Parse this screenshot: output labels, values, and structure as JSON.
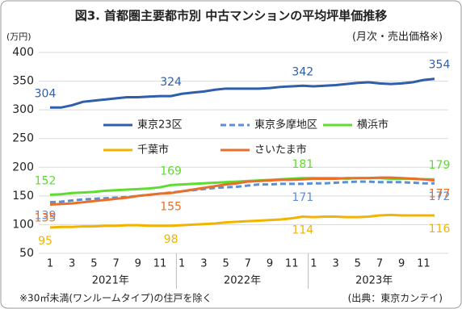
{
  "chart_data": {
    "type": "line",
    "title": "図3. 首都圏主要都市別 中古マンションの平均坪単価推移",
    "subtitle": "(月次・売出価格※)",
    "y_unit": "(万円)",
    "footnote": "※30㎡未満(ワンルームタイプ)の住戸を除く",
    "source": "(出典：東京カンテイ)",
    "categories": [
      "1",
      null,
      "3",
      null,
      "5",
      null,
      "7",
      null,
      "9",
      null,
      "11",
      null,
      "1",
      null,
      "3",
      null,
      "5",
      null,
      "7",
      null,
      "9",
      null,
      "11",
      null,
      "1",
      null,
      "3",
      null,
      "5",
      null,
      "7",
      null,
      "9",
      null,
      "11",
      null
    ],
    "x_groups": [
      "2021年",
      "2022年",
      "2023年"
    ],
    "ylim": [
      50,
      400
    ],
    "yticks": [
      50,
      100,
      150,
      200,
      250,
      300,
      350,
      400
    ],
    "grid": true,
    "legend": "upper-center",
    "series": [
      {
        "name": "東京23区",
        "color": "#2f5eaa",
        "dash": false,
        "label_pos": "above",
        "labels_at": [
          0,
          11,
          23,
          35
        ],
        "values": [
          304,
          304,
          308,
          314,
          316,
          318,
          320,
          322,
          322,
          323,
          324,
          324,
          328,
          330,
          332,
          335,
          337,
          337,
          337,
          337,
          338,
          340,
          341,
          342,
          341,
          342,
          343,
          345,
          347,
          348,
          346,
          345,
          346,
          348,
          352,
          354
        ]
      },
      {
        "name": "東京多摩地区",
        "color": "#5b8fd6",
        "dash": true,
        "label_pos": "below",
        "labels_at": [
          0,
          23,
          35
        ],
        "values": [
          139,
          140,
          142,
          144,
          145,
          146,
          147,
          148,
          150,
          152,
          154,
          156,
          158,
          160,
          162,
          164,
          165,
          166,
          168,
          170,
          170,
          171,
          171,
          171,
          172,
          172,
          173,
          174,
          175,
          175,
          174,
          174,
          174,
          173,
          172,
          172
        ]
      },
      {
        "name": "横浜市",
        "color": "#5fdc30",
        "dash": false,
        "label_pos": "above",
        "labels_at": [
          0,
          11,
          23,
          35
        ],
        "values": [
          152,
          153,
          155,
          156,
          157,
          159,
          160,
          161,
          162,
          163,
          165,
          169,
          170,
          171,
          172,
          173,
          174,
          175,
          176,
          177,
          178,
          179,
          180,
          181,
          181,
          181,
          181,
          180,
          181,
          181,
          181,
          180,
          180,
          180,
          179,
          179
        ]
      },
      {
        "name": "千葉市",
        "color": "#f2b400",
        "dash": false,
        "label_pos": "below",
        "labels_at": [
          0,
          11,
          23,
          35
        ],
        "values": [
          95,
          96,
          96,
          97,
          97,
          98,
          98,
          99,
          99,
          98,
          98,
          98,
          99,
          100,
          101,
          102,
          104,
          105,
          106,
          107,
          108,
          109,
          111,
          114,
          113,
          114,
          114,
          113,
          113,
          114,
          116,
          117,
          116,
          116,
          116,
          116
        ]
      },
      {
        "name": "さいたま市",
        "color": "#e8702a",
        "dash": false,
        "label_pos": "below",
        "labels_at": [
          0,
          11,
          35
        ],
        "values": [
          135,
          136,
          137,
          139,
          141,
          143,
          145,
          147,
          150,
          152,
          154,
          155,
          158,
          161,
          164,
          167,
          170,
          172,
          175,
          176,
          177,
          178,
          178,
          179,
          180,
          180,
          180,
          181,
          181,
          181,
          182,
          182,
          181,
          180,
          179,
          177
        ]
      }
    ]
  }
}
